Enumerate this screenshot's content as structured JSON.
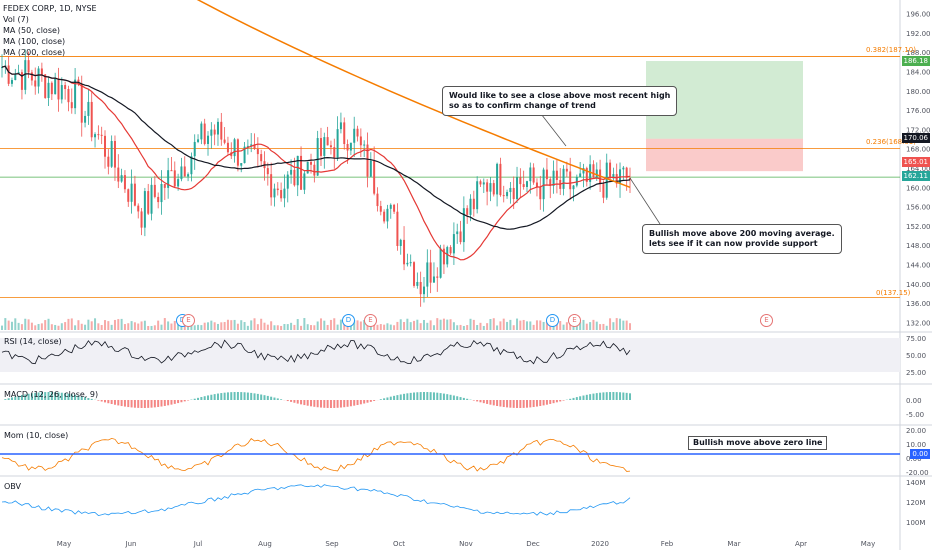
{
  "legend": {
    "symbol": "FEDEX CORP, 1D, NYSE",
    "vol": "Vol (7)",
    "ma50": "MA (50, close)",
    "ma100": "MA (100, close)",
    "ma200": "MA (200, close)"
  },
  "panes": {
    "rsi": "RSI (14, close)",
    "macd": "MACD (12, 26, close, 9)",
    "mom": "Mom (10, close)",
    "obv": "OBV"
  },
  "annotations": {
    "note_top_line1": "Would like to see a close above most recent high",
    "note_top_line2": "so as to confirm change of trend",
    "note_ma_line1": "Bullish move above 200 moving average.",
    "note_ma_line2": "lets see if it can now provide support",
    "note_mom": "Bullish move above zero line"
  },
  "fib": {
    "f382": "0.382(187.10)",
    "f236": "0.236(168.01)",
    "f0": "0(137.15)"
  },
  "price_tags": {
    "target": "186.18",
    "entry": "170.06",
    "stop": "165.01",
    "last": "162.11",
    "mom_zero": "0.00"
  },
  "earnings": {
    "e": "E",
    "d": "D"
  },
  "colors": {
    "up": "#26a69a",
    "down": "#ef5350",
    "ma50": "#e53935",
    "ma100": "#131722",
    "ma200": "#f57c00",
    "fib": "#f57c00",
    "green_line": "#4caf50",
    "mom_line": "#f57c00",
    "zero_line": "#2962ff",
    "obv": "#2196f3"
  },
  "chart_data": {
    "type": "candlestick",
    "title": "FEDEX CORP, 1D, NYSE",
    "x_labels": [
      "May",
      "Jun",
      "Jul",
      "Aug",
      "Sep",
      "Oct",
      "Nov",
      "Dec",
      "2020",
      "Feb",
      "Mar",
      "Apr",
      "May"
    ],
    "price_axis": {
      "ticks": [
        196.0,
        192.0,
        188.0,
        184.0,
        180.0,
        176.0,
        172.0,
        168.0,
        164.0,
        160.0,
        156.0,
        152.0,
        148.0,
        144.0,
        140.0,
        136.0,
        132.0
      ],
      "ylim": [
        130,
        198
      ]
    },
    "price_series": {
      "close_approx": [
        {
          "month": "Apr",
          "value": 185
        },
        {
          "month": "May",
          "value": 180
        },
        {
          "month": "Jun",
          "value": 155
        },
        {
          "month": "Jul",
          "value": 172
        },
        {
          "month": "Aug",
          "value": 160
        },
        {
          "month": "Sep",
          "value": 172
        },
        {
          "month": "Oct",
          "value": 140
        },
        {
          "month": "Nov",
          "value": 162
        },
        {
          "month": "Dec",
          "value": 160
        },
        {
          "month": "2020",
          "value": 162
        }
      ]
    },
    "fib_levels": [
      {
        "label": "0.382(187.10)",
        "value": 187.1
      },
      {
        "label": "0.236(168.01)",
        "value": 168.01
      },
      {
        "label": "0(137.15)",
        "value": 137.15
      }
    ],
    "rsi_axis": {
      "ticks": [
        75.0,
        50.0,
        25.0
      ]
    },
    "macd_axis": {
      "ticks": [
        0.0,
        -5.0
      ]
    },
    "mom_axis": {
      "ticks": [
        20.0,
        10.0,
        0.0,
        -20.0
      ]
    },
    "obv_axis": {
      "ticks": [
        "140M",
        "120M",
        "100M"
      ]
    },
    "position": {
      "target": 186.18,
      "entry": 170.06,
      "stop": 165.01
    }
  }
}
